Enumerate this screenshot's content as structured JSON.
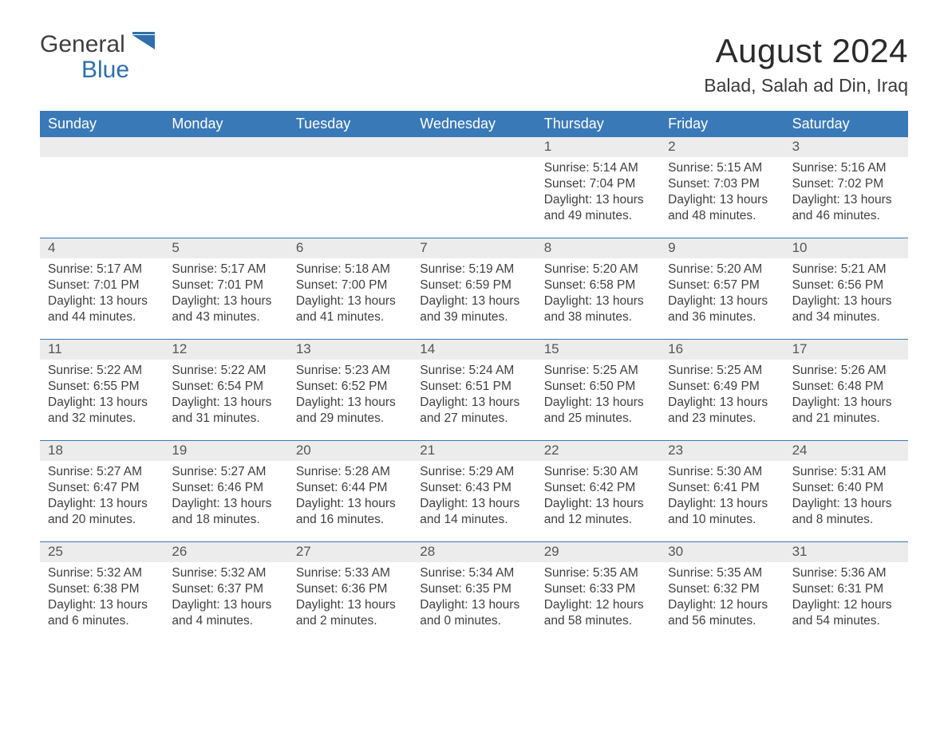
{
  "logo": {
    "text1": "General",
    "text2": "Blue",
    "brand_color": "#2f6fad"
  },
  "title": "August 2024",
  "location": "Balad, Salah ad Din, Iraq",
  "colors": {
    "header_bg": "#3a79b7",
    "header_text": "#ffffff",
    "daynum_bg": "#ececec",
    "daynum_text": "#555555",
    "body_text": "#3f3f3f",
    "rule": "#3a79b7",
    "page_bg": "#ffffff"
  },
  "typography": {
    "title_fontsize": 42,
    "location_fontsize": 23,
    "weekday_fontsize": 18,
    "daynum_fontsize": 17,
    "body_fontsize": 15.5
  },
  "layout": {
    "columns": 7,
    "rows": 5,
    "cell_min_height": 126
  },
  "weekdays": [
    "Sunday",
    "Monday",
    "Tuesday",
    "Wednesday",
    "Thursday",
    "Friday",
    "Saturday"
  ],
  "weeks": [
    [
      null,
      null,
      null,
      null,
      {
        "n": "1",
        "sunrise": "5:14 AM",
        "sunset": "7:04 PM",
        "daylight": "13 hours and 49 minutes."
      },
      {
        "n": "2",
        "sunrise": "5:15 AM",
        "sunset": "7:03 PM",
        "daylight": "13 hours and 48 minutes."
      },
      {
        "n": "3",
        "sunrise": "5:16 AM",
        "sunset": "7:02 PM",
        "daylight": "13 hours and 46 minutes."
      }
    ],
    [
      {
        "n": "4",
        "sunrise": "5:17 AM",
        "sunset": "7:01 PM",
        "daylight": "13 hours and 44 minutes."
      },
      {
        "n": "5",
        "sunrise": "5:17 AM",
        "sunset": "7:01 PM",
        "daylight": "13 hours and 43 minutes."
      },
      {
        "n": "6",
        "sunrise": "5:18 AM",
        "sunset": "7:00 PM",
        "daylight": "13 hours and 41 minutes."
      },
      {
        "n": "7",
        "sunrise": "5:19 AM",
        "sunset": "6:59 PM",
        "daylight": "13 hours and 39 minutes."
      },
      {
        "n": "8",
        "sunrise": "5:20 AM",
        "sunset": "6:58 PM",
        "daylight": "13 hours and 38 minutes."
      },
      {
        "n": "9",
        "sunrise": "5:20 AM",
        "sunset": "6:57 PM",
        "daylight": "13 hours and 36 minutes."
      },
      {
        "n": "10",
        "sunrise": "5:21 AM",
        "sunset": "6:56 PM",
        "daylight": "13 hours and 34 minutes."
      }
    ],
    [
      {
        "n": "11",
        "sunrise": "5:22 AM",
        "sunset": "6:55 PM",
        "daylight": "13 hours and 32 minutes."
      },
      {
        "n": "12",
        "sunrise": "5:22 AM",
        "sunset": "6:54 PM",
        "daylight": "13 hours and 31 minutes."
      },
      {
        "n": "13",
        "sunrise": "5:23 AM",
        "sunset": "6:52 PM",
        "daylight": "13 hours and 29 minutes."
      },
      {
        "n": "14",
        "sunrise": "5:24 AM",
        "sunset": "6:51 PM",
        "daylight": "13 hours and 27 minutes."
      },
      {
        "n": "15",
        "sunrise": "5:25 AM",
        "sunset": "6:50 PM",
        "daylight": "13 hours and 25 minutes."
      },
      {
        "n": "16",
        "sunrise": "5:25 AM",
        "sunset": "6:49 PM",
        "daylight": "13 hours and 23 minutes."
      },
      {
        "n": "17",
        "sunrise": "5:26 AM",
        "sunset": "6:48 PM",
        "daylight": "13 hours and 21 minutes."
      }
    ],
    [
      {
        "n": "18",
        "sunrise": "5:27 AM",
        "sunset": "6:47 PM",
        "daylight": "13 hours and 20 minutes."
      },
      {
        "n": "19",
        "sunrise": "5:27 AM",
        "sunset": "6:46 PM",
        "daylight": "13 hours and 18 minutes."
      },
      {
        "n": "20",
        "sunrise": "5:28 AM",
        "sunset": "6:44 PM",
        "daylight": "13 hours and 16 minutes."
      },
      {
        "n": "21",
        "sunrise": "5:29 AM",
        "sunset": "6:43 PM",
        "daylight": "13 hours and 14 minutes."
      },
      {
        "n": "22",
        "sunrise": "5:30 AM",
        "sunset": "6:42 PM",
        "daylight": "13 hours and 12 minutes."
      },
      {
        "n": "23",
        "sunrise": "5:30 AM",
        "sunset": "6:41 PM",
        "daylight": "13 hours and 10 minutes."
      },
      {
        "n": "24",
        "sunrise": "5:31 AM",
        "sunset": "6:40 PM",
        "daylight": "13 hours and 8 minutes."
      }
    ],
    [
      {
        "n": "25",
        "sunrise": "5:32 AM",
        "sunset": "6:38 PM",
        "daylight": "13 hours and 6 minutes."
      },
      {
        "n": "26",
        "sunrise": "5:32 AM",
        "sunset": "6:37 PM",
        "daylight": "13 hours and 4 minutes."
      },
      {
        "n": "27",
        "sunrise": "5:33 AM",
        "sunset": "6:36 PM",
        "daylight": "13 hours and 2 minutes."
      },
      {
        "n": "28",
        "sunrise": "5:34 AM",
        "sunset": "6:35 PM",
        "daylight": "13 hours and 0 minutes."
      },
      {
        "n": "29",
        "sunrise": "5:35 AM",
        "sunset": "6:33 PM",
        "daylight": "12 hours and 58 minutes."
      },
      {
        "n": "30",
        "sunrise": "5:35 AM",
        "sunset": "6:32 PM",
        "daylight": "12 hours and 56 minutes."
      },
      {
        "n": "31",
        "sunrise": "5:36 AM",
        "sunset": "6:31 PM",
        "daylight": "12 hours and 54 minutes."
      }
    ]
  ],
  "labels": {
    "sunrise": "Sunrise: ",
    "sunset": "Sunset: ",
    "daylight": "Daylight: "
  }
}
